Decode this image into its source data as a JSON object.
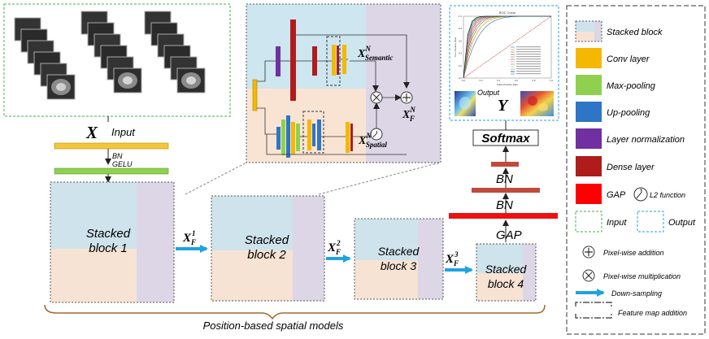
{
  "input_section": {
    "x_symbol": "X",
    "input_label": "Input",
    "bn_label": "BN",
    "gelu_label": "GELU"
  },
  "blocks": [
    {
      "line1": "Stacked",
      "line2": "block 1"
    },
    {
      "line1": "Stacked",
      "line2": "block 2"
    },
    {
      "line1": "Stacked",
      "line2": "block 3"
    },
    {
      "line1": "Stacked",
      "line2": "block 4"
    }
  ],
  "arrows": {
    "xf": "X",
    "xf_sub": "F",
    "sups": [
      "1",
      "2",
      "3"
    ]
  },
  "detail": {
    "x_sym": "X",
    "n_sup": "N",
    "semantic": "Semantic",
    "spatial": "Spatial",
    "f_sub": "F"
  },
  "head": {
    "gap": "GAP",
    "bn1": "BN",
    "bn2": "BN",
    "softmax": "Softmax",
    "output_label": "Output",
    "y_symbol": "Y"
  },
  "roc": {
    "title": "ROC Curve",
    "xlabel": "False Positive Rate",
    "ylabel": "True Positive Rate",
    "xticks": [
      "0.0",
      "0.2",
      "0.4",
      "0.6",
      "0.8",
      "1.0"
    ],
    "yticks": [
      "0.0",
      "0.2",
      "0.4",
      "0.6",
      "0.8",
      "1.0"
    ]
  },
  "bottom_label": "Position-based spatial models",
  "legend": {
    "items": [
      {
        "label": "Stacked block",
        "color": "#cfe3ec"
      },
      {
        "label": "Conv layer",
        "color": "#f5b800"
      },
      {
        "label": "Max-pooling",
        "color": "#8fd14f"
      },
      {
        "label": "Up-pooling",
        "color": "#2e75c6"
      },
      {
        "label": "Layer normalization",
        "color": "#7030a0"
      },
      {
        "label": "Dense layer",
        "color": "#b01c1c"
      },
      {
        "label": "GAP",
        "color": "#ff0000"
      }
    ],
    "l2": "L2 function",
    "input": "Input",
    "output": "Output",
    "add": "Pixel-wise addition",
    "mult": "Pixel-wise multiplication",
    "down": "Down-sampling",
    "fma": "Feature map addition"
  }
}
